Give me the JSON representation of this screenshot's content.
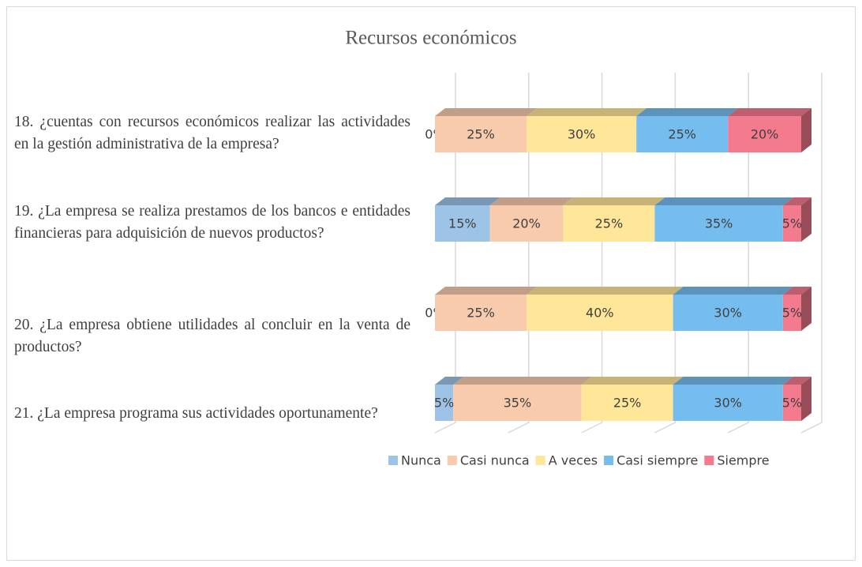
{
  "chart_data": {
    "type": "bar3d_stacked_horizontal",
    "title": "Recursos económicos",
    "categories": [
      "18. ¿cuentas con recursos económicos realizar las actividades en la gestión administrativa de la empresa?",
      "19. ¿La empresa se realiza prestamos de los bancos e entidades financieras para adquisición de nuevos productos?",
      "20. ¿La empresa obtiene utilidades al concluir en la venta de productos?",
      "21. ¿La empresa programa sus actividades oportunamente?"
    ],
    "series": [
      {
        "name": "Nunca",
        "color": "#9dc3e6",
        "values": [
          0,
          15,
          0,
          5
        ],
        "value_labels": [
          "0%",
          "15%",
          "0%",
          "5%"
        ]
      },
      {
        "name": "Casi nunca",
        "color": "#f8cbad",
        "values": [
          25,
          20,
          25,
          35
        ],
        "value_labels": [
          "25%",
          "20%",
          "25%",
          "35%"
        ]
      },
      {
        "name": "A veces",
        "color": "#ffe699",
        "values": [
          30,
          25,
          40,
          25
        ],
        "value_labels": [
          "30%",
          "25%",
          "40%",
          "25%"
        ]
      },
      {
        "name": "Casi siempre",
        "color": "#75bdee",
        "values": [
          25,
          35,
          30,
          30
        ],
        "value_labels": [
          "25%",
          "35%",
          "30%",
          "30%"
        ]
      },
      {
        "name": "Siempre",
        "color": "#f47a8e",
        "values": [
          20,
          5,
          5,
          5
        ],
        "value_labels": [
          "20%",
          "5%",
          "5%",
          "5%"
        ]
      }
    ],
    "xlim": [
      0,
      100
    ],
    "xticks": [
      0,
      20,
      40,
      60,
      80,
      100
    ],
    "grid": true,
    "legend": "bottom"
  }
}
